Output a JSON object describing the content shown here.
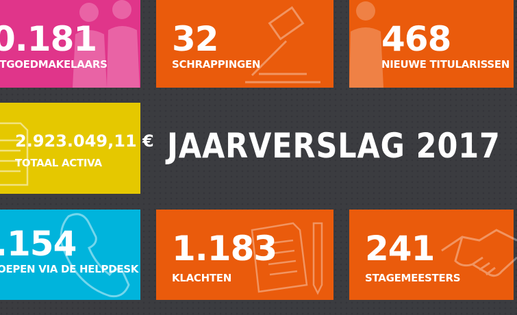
{
  "title": "JAARVERSLAG 2017",
  "colors": {
    "pink": "#e0358a",
    "orange": "#ea5b0c",
    "yellow": "#e5c800",
    "cyan": "#00b4dc",
    "bg": "#3b3c40"
  },
  "tiles": [
    {
      "value": "0.181",
      "label": "ITGOEDMAKELAARS",
      "icon": "business-people-icon"
    },
    {
      "value": "32",
      "label": "SCHRAPPINGEN",
      "icon": "gavel-icon"
    },
    {
      "value": "468",
      "label": "NIEUWE TITULARISSEN",
      "icon": "people-icon"
    },
    {
      "value": "2.923.049,11 €",
      "label": "TOTAAL ACTIVA",
      "icon": "document-icon"
    },
    {
      "value": ".154",
      "label": "OEPEN VIA DE HELPDESK",
      "icon": "phone-icon"
    },
    {
      "value": "1.183",
      "label": "KLACHTEN",
      "icon": "documents-pencil-icon"
    },
    {
      "value": "241",
      "label": "STAGEMEESTERS",
      "icon": "handshake-icon"
    }
  ]
}
